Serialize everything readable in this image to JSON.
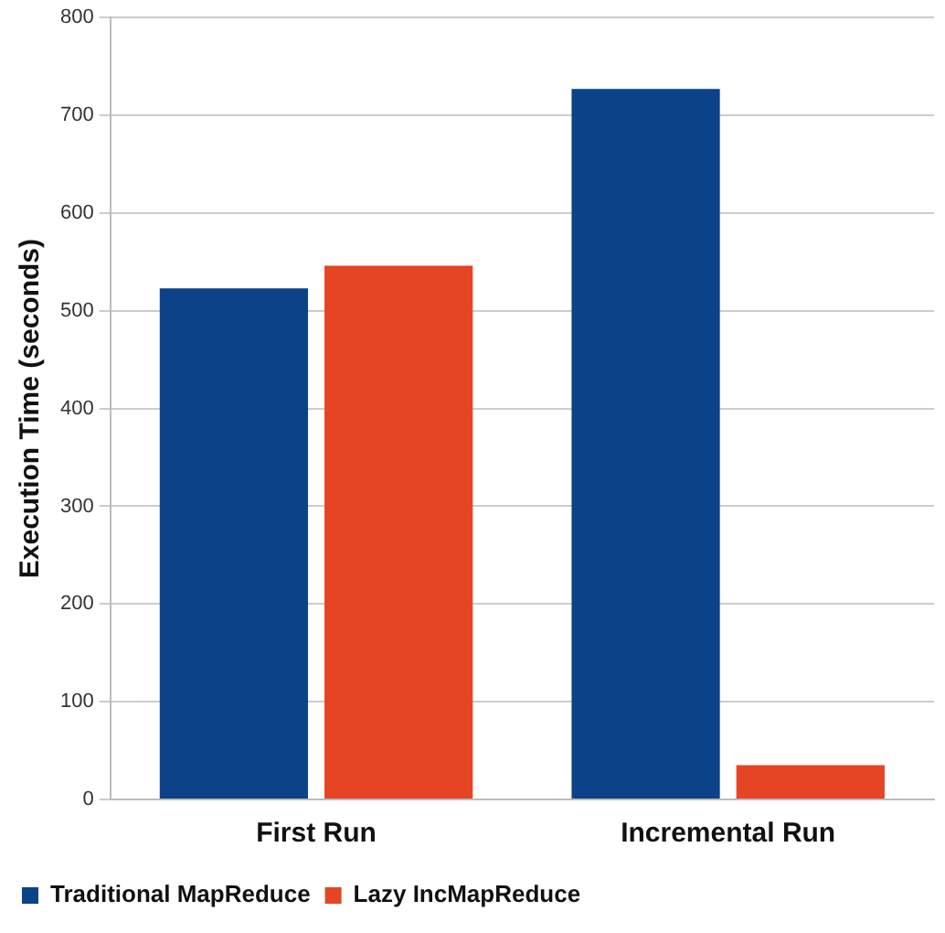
{
  "chart_data": {
    "type": "bar",
    "ylabel": "Execution Time (seconds)",
    "categories": [
      "First Run",
      "Incremental Run"
    ],
    "series": [
      {
        "name": "Traditional MapReduce",
        "color": "#0b4288",
        "values": [
          523,
          727
        ]
      },
      {
        "name": "Lazy IncMapReduce",
        "color": "#e54425",
        "values": [
          546,
          35
        ]
      }
    ],
    "ylim": [
      0,
      800
    ],
    "yticks": [
      0,
      100,
      200,
      300,
      400,
      500,
      600,
      700,
      800
    ],
    "grid": "y",
    "legend": "bottom"
  }
}
